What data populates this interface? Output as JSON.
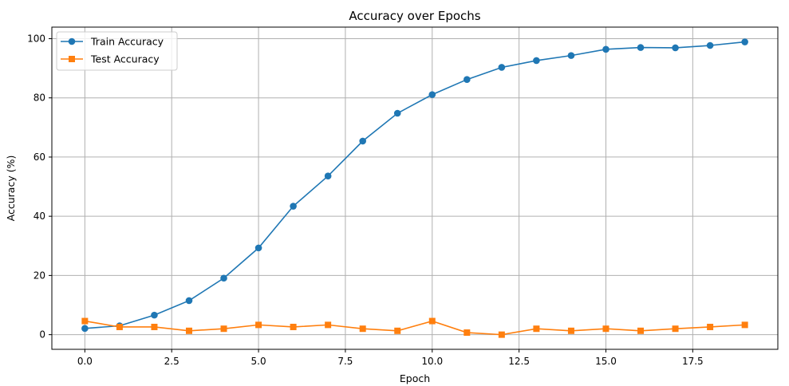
{
  "chart_data": {
    "type": "line",
    "title": "Accuracy over Epochs",
    "xlabel": "Epoch",
    "ylabel": "Accuracy (%)",
    "xlim": [
      -0.95,
      19.95
    ],
    "ylim": [
      -4.95,
      103.9
    ],
    "xticks": [
      "0.0",
      "2.5",
      "5.0",
      "7.5",
      "10.0",
      "12.5",
      "15.0",
      "17.5"
    ],
    "yticks": [
      "0",
      "20",
      "40",
      "60",
      "80",
      "100"
    ],
    "grid": true,
    "legend_position": "top-left",
    "x": [
      0,
      1,
      2,
      3,
      4,
      5,
      6,
      7,
      8,
      9,
      10,
      11,
      12,
      13,
      14,
      15,
      16,
      17,
      18,
      19
    ],
    "series": [
      {
        "name": "Train Accuracy",
        "color": "#1f77b4",
        "marker": "circle",
        "values": [
          2.1,
          3.0,
          6.6,
          11.5,
          19.1,
          29.3,
          43.4,
          53.6,
          65.4,
          74.8,
          81.1,
          86.2,
          90.3,
          92.6,
          94.3,
          96.4,
          97.0,
          96.9,
          97.7,
          98.9
        ]
      },
      {
        "name": "Test Accuracy",
        "color": "#ff7f0e",
        "marker": "square",
        "values": [
          4.6,
          2.6,
          2.6,
          1.3,
          2.0,
          3.3,
          2.6,
          3.3,
          2.0,
          1.3,
          4.6,
          0.7,
          0.0,
          2.0,
          1.3,
          2.0,
          1.3,
          2.0,
          2.6,
          3.3
        ]
      }
    ]
  }
}
